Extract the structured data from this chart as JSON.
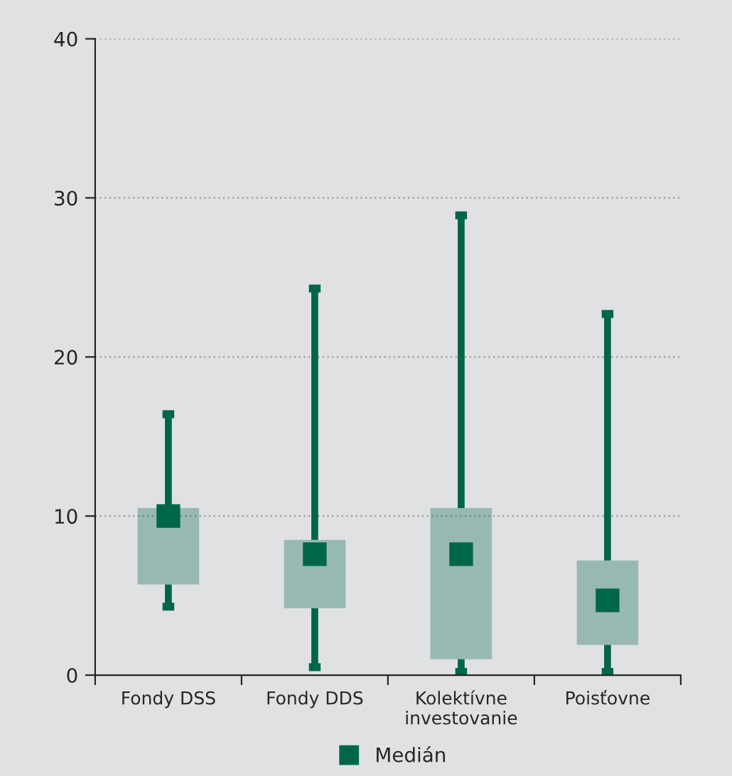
{
  "chart_data": {
    "type": "box",
    "categories": [
      "Fondy DSS",
      "Fondy DDS",
      "Kolektívne\ninvestovanie",
      "Poisťovne"
    ],
    "series": [
      {
        "name": "Medián",
        "color": "#00664a",
        "boxes": [
          {
            "low": 4.3,
            "q1": 5.7,
            "median": 10.0,
            "q3": 10.5,
            "high": 16.4
          },
          {
            "low": 0.5,
            "q1": 4.2,
            "median": 7.6,
            "q3": 8.5,
            "high": 24.3
          },
          {
            "low": 0.2,
            "q1": 1.0,
            "median": 7.6,
            "q3": 10.5,
            "high": 28.9
          },
          {
            "low": 0.2,
            "q1": 1.9,
            "median": 4.7,
            "q3": 7.2,
            "high": 22.7
          }
        ]
      }
    ],
    "ylim": [
      0,
      40
    ],
    "yticks": [
      0,
      10,
      20,
      30,
      40
    ],
    "grid": "y",
    "legend": "bottom",
    "marker": "square"
  }
}
